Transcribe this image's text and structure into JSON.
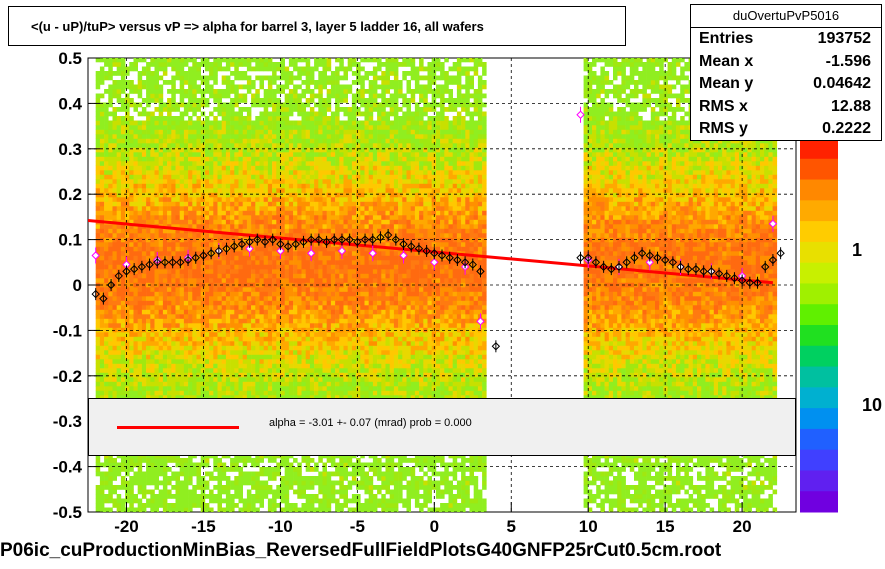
{
  "title": "<(u - uP)/tuP>  versus   vP => alpha for barrel 3, layer 5 ladder 16, all wafers",
  "stats": {
    "name": "duOvertuPvP5016",
    "rows": [
      {
        "label": "Entries",
        "value": "193752"
      },
      {
        "label": "Mean x",
        "value": "-1.596"
      },
      {
        "label": "Mean y",
        "value": "0.04642"
      },
      {
        "label": "RMS x",
        "value": "12.88"
      },
      {
        "label": "RMS y",
        "value": "0.2222"
      }
    ]
  },
  "legend": {
    "text": "alpha =   -3.01 +-  0.07 (mrad) prob = 0.000",
    "color": "#ff0000"
  },
  "footer": "P06ic_cuProductionMinBias_ReversedFullFieldPlotsG40GNFP25rCut0.5cm.root",
  "colorbar": {
    "labels": [
      "1",
      "10"
    ],
    "partial_label": "0"
  },
  "chart_data": {
    "type": "heatmap",
    "xlim": [
      -22.5,
      23.5
    ],
    "ylim": [
      -0.5,
      0.5
    ],
    "xticks": [
      -20,
      -15,
      -10,
      -5,
      0,
      5,
      10,
      15,
      20
    ],
    "yticks": [
      -0.5,
      -0.4,
      -0.3,
      -0.2,
      -0.1,
      0,
      0.1,
      0.2,
      0.3,
      0.4,
      0.5
    ],
    "xtick_labels": [
      "-20",
      "-15",
      "-10",
      "-5",
      "0",
      "5",
      "10",
      "15",
      "20"
    ],
    "ytick_labels": [
      "-0.5",
      "-0.4",
      "-0.3",
      "-0.2",
      "-0.1",
      "0",
      "0.1",
      "0.2",
      "0.3",
      "0.4",
      "0.5"
    ],
    "heatmap_regions": [
      {
        "x": [
          -22,
          3.3
        ]
      },
      {
        "x": [
          9.7,
          22
        ]
      }
    ],
    "fit_line": {
      "x": [
        -22.5,
        22
      ],
      "y": [
        0.142,
        0.005
      ],
      "color": "#ff0000"
    },
    "profile_black": [
      {
        "x": -22,
        "y": -0.02
      },
      {
        "x": -21.5,
        "y": -0.03
      },
      {
        "x": -21,
        "y": 0.0
      },
      {
        "x": -20.5,
        "y": 0.02
      },
      {
        "x": -20,
        "y": 0.03
      },
      {
        "x": -19.5,
        "y": 0.035
      },
      {
        "x": -19,
        "y": 0.04
      },
      {
        "x": -18.5,
        "y": 0.045
      },
      {
        "x": -18,
        "y": 0.05
      },
      {
        "x": -17.5,
        "y": 0.05
      },
      {
        "x": -17,
        "y": 0.05
      },
      {
        "x": -16.5,
        "y": 0.05
      },
      {
        "x": -16,
        "y": 0.055
      },
      {
        "x": -15.5,
        "y": 0.06
      },
      {
        "x": -15,
        "y": 0.065
      },
      {
        "x": -14.5,
        "y": 0.07
      },
      {
        "x": -14,
        "y": 0.075
      },
      {
        "x": -13.5,
        "y": 0.08
      },
      {
        "x": -13,
        "y": 0.085
      },
      {
        "x": -12.5,
        "y": 0.09
      },
      {
        "x": -12,
        "y": 0.095
      },
      {
        "x": -11.5,
        "y": 0.1
      },
      {
        "x": -11,
        "y": 0.095
      },
      {
        "x": -10.5,
        "y": 0.1
      },
      {
        "x": -10,
        "y": 0.09
      },
      {
        "x": -9.5,
        "y": 0.085
      },
      {
        "x": -9,
        "y": 0.09
      },
      {
        "x": -8.5,
        "y": 0.095
      },
      {
        "x": -8,
        "y": 0.1
      },
      {
        "x": -7.5,
        "y": 0.1
      },
      {
        "x": -7,
        "y": 0.095
      },
      {
        "x": -6.5,
        "y": 0.1
      },
      {
        "x": -6,
        "y": 0.1
      },
      {
        "x": -5.5,
        "y": 0.1
      },
      {
        "x": -5,
        "y": 0.095
      },
      {
        "x": -4.5,
        "y": 0.1
      },
      {
        "x": -4,
        "y": 0.1
      },
      {
        "x": -3.5,
        "y": 0.105
      },
      {
        "x": -3,
        "y": 0.11
      },
      {
        "x": -2.5,
        "y": 0.1
      },
      {
        "x": -2,
        "y": 0.09
      },
      {
        "x": -1.5,
        "y": 0.085
      },
      {
        "x": -1,
        "y": 0.08
      },
      {
        "x": -0.5,
        "y": 0.075
      },
      {
        "x": 0,
        "y": 0.07
      },
      {
        "x": 0.5,
        "y": 0.065
      },
      {
        "x": 1,
        "y": 0.06
      },
      {
        "x": 1.5,
        "y": 0.055
      },
      {
        "x": 2,
        "y": 0.05
      },
      {
        "x": 2.5,
        "y": 0.045
      },
      {
        "x": 3,
        "y": 0.03
      },
      {
        "x": 4,
        "y": -0.135
      },
      {
        "x": 9.5,
        "y": 0.06
      },
      {
        "x": 10,
        "y": 0.06
      },
      {
        "x": 10.5,
        "y": 0.05
      },
      {
        "x": 11,
        "y": 0.04
      },
      {
        "x": 11.5,
        "y": 0.035
      },
      {
        "x": 12,
        "y": 0.04
      },
      {
        "x": 12.5,
        "y": 0.05
      },
      {
        "x": 13,
        "y": 0.06
      },
      {
        "x": 13.5,
        "y": 0.07
      },
      {
        "x": 14,
        "y": 0.065
      },
      {
        "x": 14.5,
        "y": 0.06
      },
      {
        "x": 15,
        "y": 0.055
      },
      {
        "x": 15.5,
        "y": 0.05
      },
      {
        "x": 16,
        "y": 0.04
      },
      {
        "x": 16.5,
        "y": 0.035
      },
      {
        "x": 17,
        "y": 0.035
      },
      {
        "x": 17.5,
        "y": 0.03
      },
      {
        "x": 18,
        "y": 0.03
      },
      {
        "x": 18.5,
        "y": 0.025
      },
      {
        "x": 19,
        "y": 0.02
      },
      {
        "x": 19.5,
        "y": 0.015
      },
      {
        "x": 20,
        "y": 0.01
      },
      {
        "x": 20.5,
        "y": 0.005
      },
      {
        "x": 21,
        "y": 0.005
      },
      {
        "x": 21.5,
        "y": 0.04
      },
      {
        "x": 22,
        "y": 0.055
      },
      {
        "x": 22.5,
        "y": 0.07
      }
    ],
    "profile_magenta": [
      {
        "x": -22,
        "y": 0.065
      },
      {
        "x": -20,
        "y": 0.045
      },
      {
        "x": -18,
        "y": 0.055
      },
      {
        "x": -16,
        "y": 0.06
      },
      {
        "x": -14,
        "y": 0.075
      },
      {
        "x": -12,
        "y": 0.08
      },
      {
        "x": -10,
        "y": 0.075
      },
      {
        "x": -8,
        "y": 0.07
      },
      {
        "x": -6,
        "y": 0.075
      },
      {
        "x": -4,
        "y": 0.07
      },
      {
        "x": -2,
        "y": 0.065
      },
      {
        "x": 0,
        "y": 0.05
      },
      {
        "x": 2,
        "y": 0.04
      },
      {
        "x": 3,
        "y": -0.08
      },
      {
        "x": 9.5,
        "y": 0.375
      },
      {
        "x": 10,
        "y": 0.055
      },
      {
        "x": 12,
        "y": 0.04
      },
      {
        "x": 14,
        "y": 0.05
      },
      {
        "x": 16,
        "y": 0.04
      },
      {
        "x": 18,
        "y": 0.03
      },
      {
        "x": 20,
        "y": 0.02
      },
      {
        "x": 22,
        "y": 0.135
      }
    ]
  }
}
